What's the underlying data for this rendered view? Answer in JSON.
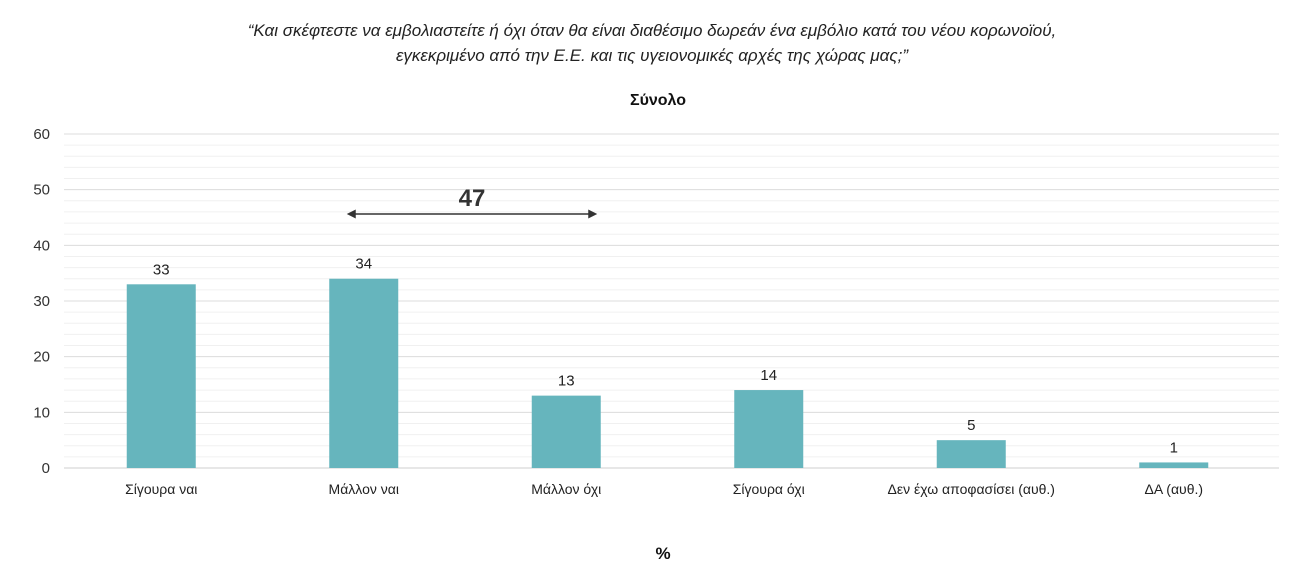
{
  "chart_data": {
    "type": "bar",
    "question_lines": [
      "“Και σκέφτεστε να εμβολιαστείτε ή όχι όταν θα είναι διαθέσιμο δωρεάν ένα εμβόλιο κατά του νέου κορωνοϊού,",
      "εγκεκριμένο από την Ε.Ε. και τις υγειονομικές αρχές της χώρας μας;”"
    ],
    "subtitle": "Σύνολο",
    "unit_label": "%",
    "categories": [
      "Σίγουρα ναι",
      "Μάλλον ναι",
      "Μάλλον όχι",
      "Σίγουρα όχι",
      "Δεν έχω αποφασίσει (αυθ.)",
      "ΔΑ (αυθ.)"
    ],
    "values": [
      33,
      34,
      13,
      14,
      5,
      1
    ],
    "ylim": [
      0,
      60
    ],
    "yticks": [
      0,
      10,
      20,
      30,
      40,
      50,
      60
    ],
    "grid": true,
    "bar_color": "#66b5bd",
    "annotation": {
      "text": "47",
      "from_category": "Μάλλον ναι",
      "to_category": "Μάλλον όχι"
    }
  }
}
